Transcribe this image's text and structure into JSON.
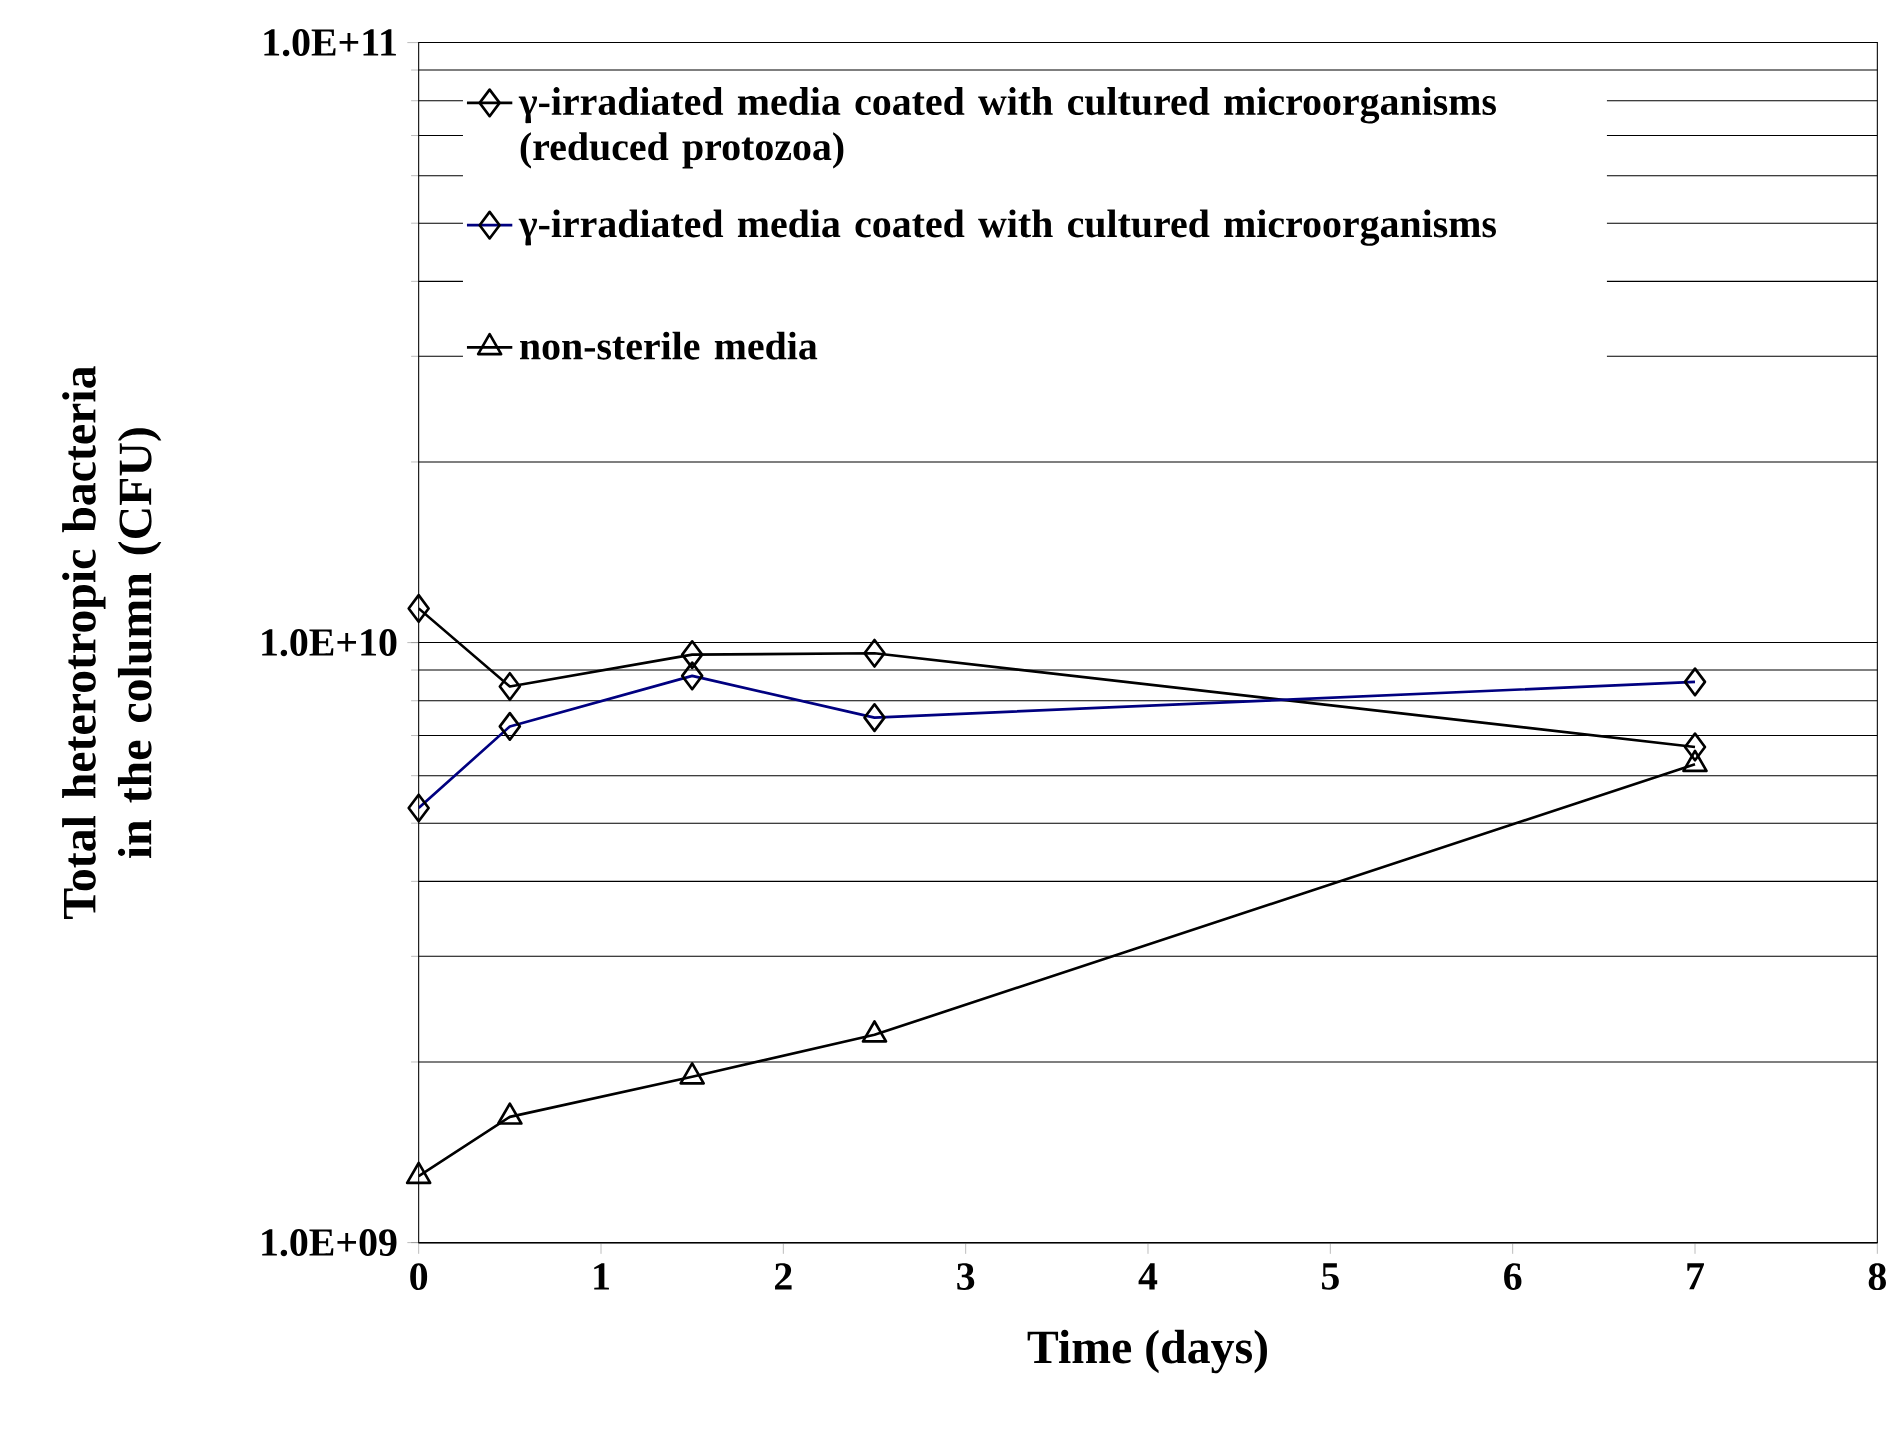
{
  "chart_data": {
    "type": "line",
    "xlabel": "Time (days)",
    "ylabel": "Total heterotropic bacteria in the column (CFU)",
    "x": [
      0,
      0.5,
      1.5,
      2.5,
      7
    ],
    "series": [
      {
        "name": "γ-irradiated media coated with cultured microorganisms (reduced protozoa)",
        "color": "#000000",
        "marker": "diamond",
        "values": [
          11400000000.0,
          8450000000.0,
          9550000000.0,
          9600000000.0,
          6700000000.0
        ]
      },
      {
        "name": "γ-irradiated media coated with cultured microorganisms",
        "color": "#000080",
        "marker": "diamond",
        "values": [
          5300000000.0,
          7250000000.0,
          8800000000.0,
          7500000000.0,
          8600000000.0
        ]
      },
      {
        "name": "non-sterile media",
        "color": "#000000",
        "marker": "triangle",
        "values": [
          1290000000.0,
          1620000000.0,
          1890000000.0,
          2220000000.0,
          6270000000.0
        ]
      }
    ],
    "xlim": [
      0,
      8
    ],
    "xticks": [
      0,
      1,
      2,
      3,
      4,
      5,
      6,
      7,
      8
    ],
    "ylim": [
      1000000000.0,
      100000000000.0
    ],
    "yticks": [
      {
        "value": 1000000000.0,
        "label": "1.0E+09"
      },
      {
        "value": 10000000000.0,
        "label": "1.0E+10"
      },
      {
        "value": 100000000000.0,
        "label": "1.0E+11"
      }
    ],
    "log": "y",
    "grid": "y",
    "legend": "top",
    "line_style": "solid"
  }
}
